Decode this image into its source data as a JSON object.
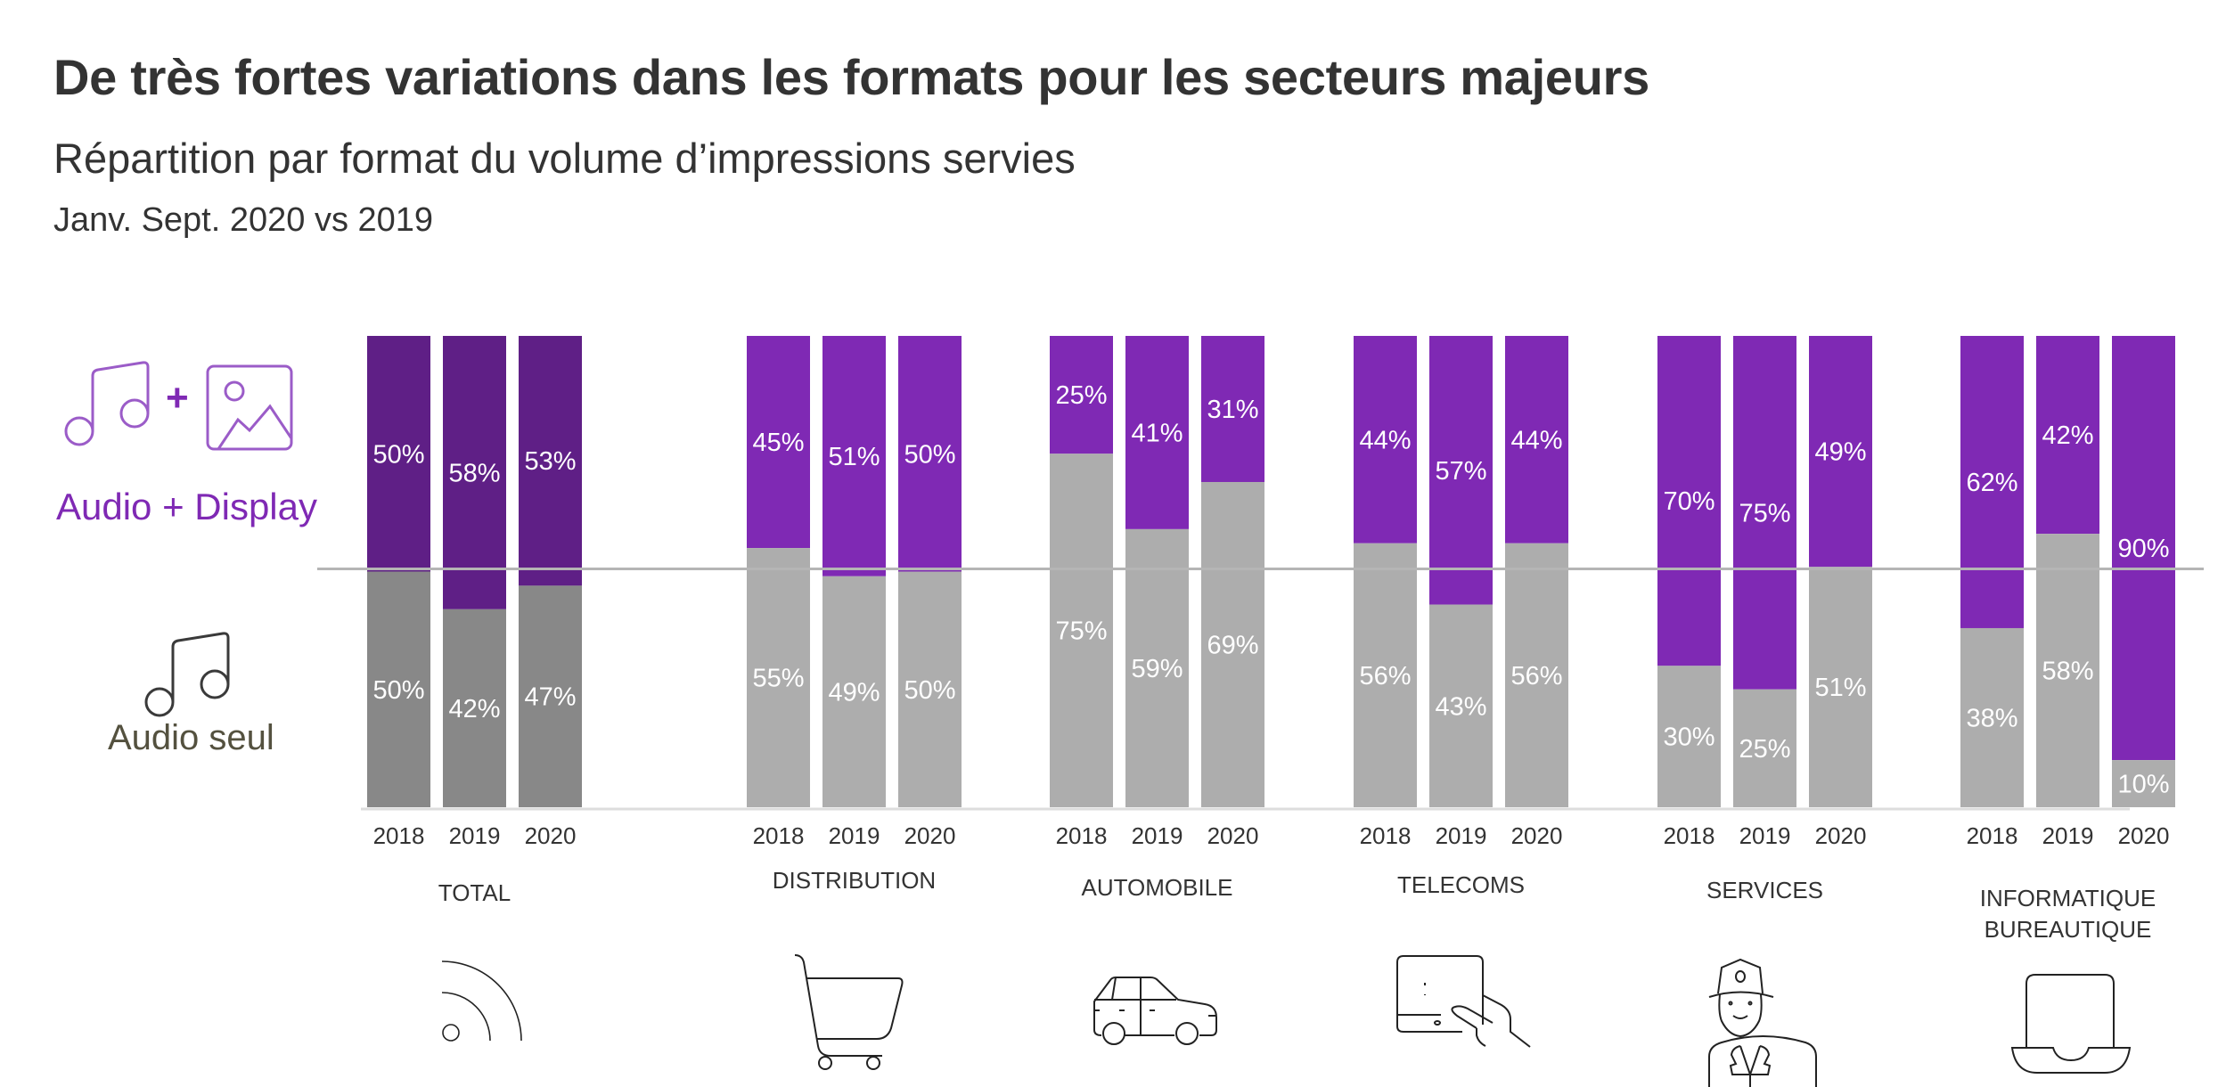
{
  "header": {
    "title": "De très fortes variations dans les formats pour les secteurs majeurs",
    "subtitle": "Répartition par format du volume d’impressions servies",
    "period": "Janv. Sept. 2020 vs 2019"
  },
  "legend": {
    "audio_display": {
      "label": "Audio + Display",
      "plus": "+",
      "icons": [
        "music-note-icon",
        "image-icon"
      ],
      "color": "#7F29B4"
    },
    "audio_only": {
      "label": "Audio seul",
      "icons": [
        "music-note-icon"
      ],
      "color": "#54513F"
    }
  },
  "colors": {
    "total_audio_display": "#5F1F86",
    "total_audio_only": "#888888",
    "audio_display": "#7F29B4",
    "audio_only": "#ADADAD",
    "divider": "#B5B5B5",
    "label_text": "#FFFFFF"
  },
  "chart_data": {
    "type": "bar",
    "stacked": true,
    "normalized": true,
    "title": "De très fortes variations dans les formats pour les secteurs majeurs",
    "subtitle": "Répartition par format du volume d’impressions servies",
    "xlabel": "",
    "ylabel": "",
    "ylim": [
      0,
      100
    ],
    "unit": "%",
    "reference_line": 50,
    "years": [
      "2018",
      "2019",
      "2020"
    ],
    "legend": [
      "Audio + Display",
      "Audio seul"
    ],
    "legend_position": "left",
    "groups": [
      {
        "name": "TOTAL",
        "icon": "signal-icon",
        "audio_display": [
          50,
          58,
          53
        ],
        "audio_only": [
          50,
          42,
          47
        ]
      },
      {
        "name": "DISTRIBUTION",
        "icon": "shopping-cart-icon",
        "audio_display": [
          45,
          51,
          50
        ],
        "audio_only": [
          55,
          49,
          50
        ]
      },
      {
        "name": "AUTOMOBILE",
        "icon": "car-icon",
        "audio_display": [
          25,
          41,
          31
        ],
        "audio_only": [
          75,
          59,
          69
        ]
      },
      {
        "name": "TELECOMS",
        "icon": "tablet-hand-icon",
        "audio_display": [
          44,
          57,
          44
        ],
        "audio_only": [
          56,
          43,
          56
        ]
      },
      {
        "name": "SERVICES",
        "icon": "service-person-icon",
        "audio_display": [
          70,
          75,
          49
        ],
        "audio_only": [
          30,
          25,
          51
        ]
      },
      {
        "name": "INFORMATIQUE\nBUREAUTIQUE",
        "icon": "laptop-icon",
        "audio_display": [
          62,
          42,
          90
        ],
        "audio_only": [
          38,
          58,
          10
        ]
      }
    ]
  }
}
